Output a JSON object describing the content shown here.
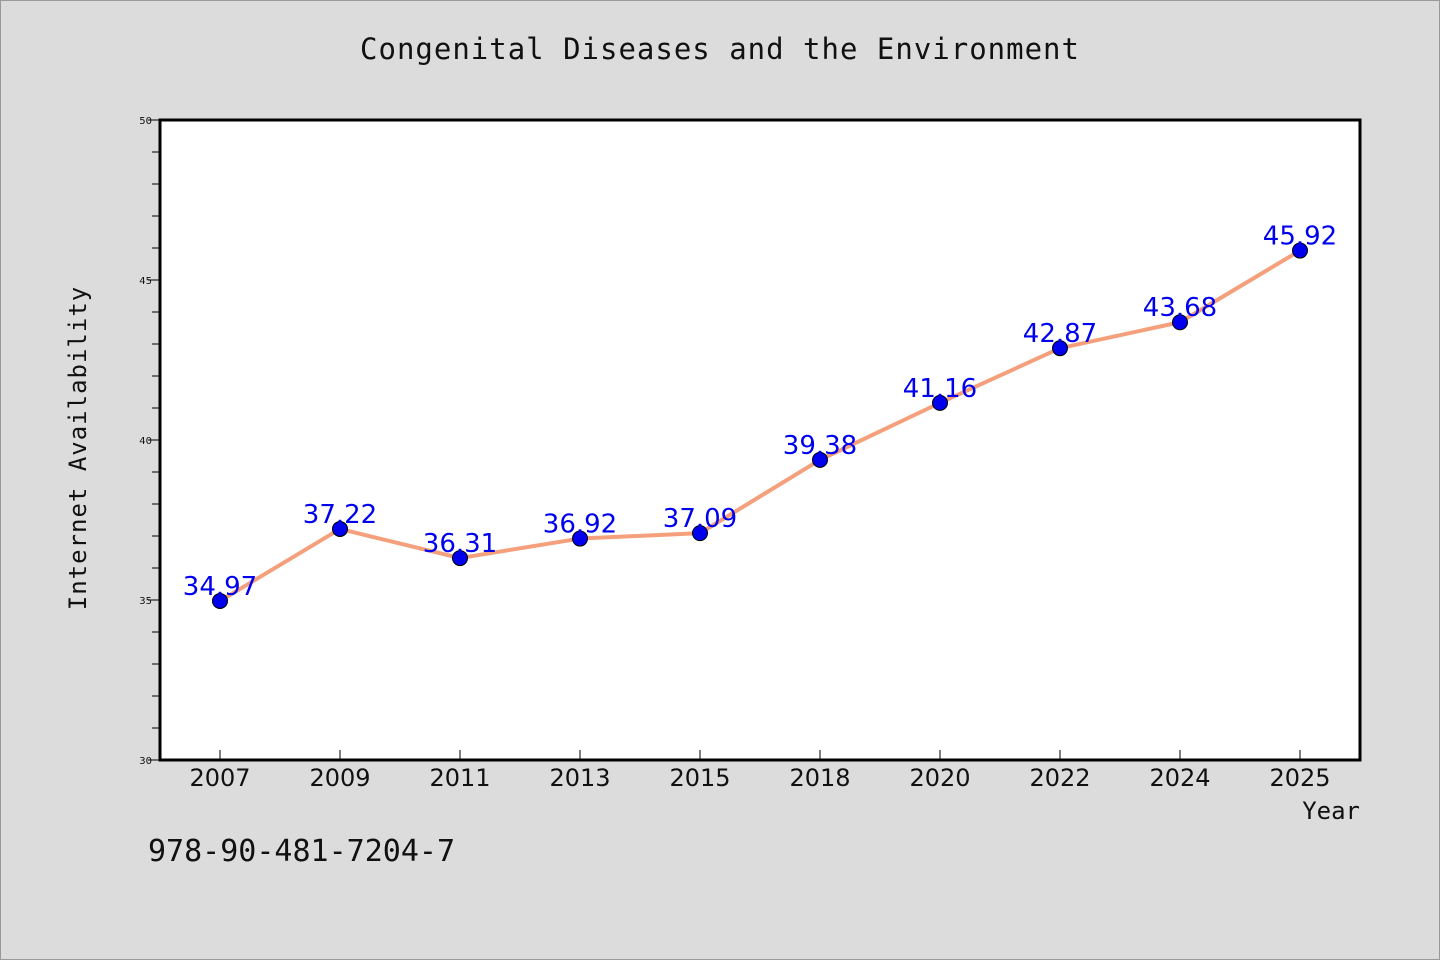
{
  "chart_data": {
    "type": "line",
    "title": "Congenital Diseases and the Environment",
    "xlabel": "Year",
    "ylabel": "Internet Availability",
    "categories": [
      "2007",
      "2009",
      "2011",
      "2013",
      "2015",
      "2018",
      "2020",
      "2022",
      "2024",
      "2025"
    ],
    "series": [
      {
        "values": [
          34.97,
          37.22,
          36.31,
          36.92,
          37.09,
          39.38,
          41.16,
          42.87,
          43.68,
          45.92
        ],
        "labels": [
          "34.97",
          "37.22",
          "36.31",
          "36.92",
          "37.09",
          "39.38",
          "41.16",
          "42.87",
          "43.68",
          "45.92"
        ]
      }
    ],
    "ylim": [
      30,
      50
    ],
    "yticks": [
      "30",
      "35",
      "40",
      "45",
      "50"
    ],
    "grid": false,
    "line_color": "#f4a07c",
    "marker_color": "#0000ee",
    "label_color": "#0000ee"
  },
  "footer": {
    "isbn": "978-90-481-7204-7"
  }
}
